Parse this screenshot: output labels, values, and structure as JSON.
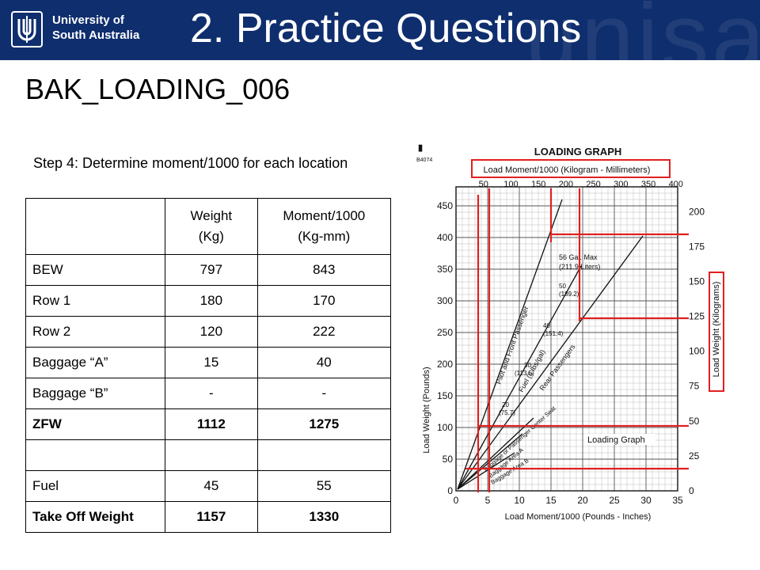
{
  "header": {
    "university_line1": "University of",
    "university_line2": "South Australia",
    "title": "2. Practice Questions",
    "watermark": "unisa"
  },
  "subtitle": "BAK_LOADING_006",
  "step_text": "Step 4: Determine moment/1000 for each location",
  "table": {
    "col_weight": [
      "Weight",
      "(Kg)"
    ],
    "col_moment": [
      "Moment/1000",
      "(Kg-mm)"
    ],
    "rows": [
      {
        "label": "BEW",
        "weight": "797",
        "moment": "843",
        "bold": false
      },
      {
        "label": "Row 1",
        "weight": "180",
        "moment": "170",
        "bold": false
      },
      {
        "label": "Row 2",
        "weight": "120",
        "moment": "222",
        "bold": false
      },
      {
        "label": "Baggage “A”",
        "weight": "15",
        "moment": "40",
        "bold": false
      },
      {
        "label": "Baggage “B”",
        "weight": "-",
        "moment": "-",
        "bold": false
      },
      {
        "label": "ZFW",
        "weight": "1112",
        "moment": "1275",
        "bold": true
      },
      {
        "label": "",
        "weight": "",
        "moment": "",
        "bold": false
      },
      {
        "label": "Fuel",
        "weight": "45",
        "moment": "55",
        "bold": false
      },
      {
        "label": "Take Off Weight",
        "weight": "1157",
        "moment": "1330",
        "bold": true
      }
    ]
  },
  "graph": {
    "corner_code": "B4074",
    "title": "LOADING GRAPH",
    "top_axis_label": "Load Moment/1000 (Kilogram - Millimeters)",
    "top_ticks": [
      "50",
      "100",
      "150",
      "200",
      "250",
      "300",
      "350",
      "400"
    ],
    "bottom_axis_label": "Load Moment/1000 (Pounds - Inches)",
    "bottom_ticks": [
      "0",
      "5",
      "10",
      "15",
      "20",
      "25",
      "30",
      "35"
    ],
    "left_axis_label": "Load Weight (Pounds)",
    "left_ticks": [
      "0",
      "50",
      "100",
      "150",
      "200",
      "250",
      "300",
      "350",
      "400",
      "450"
    ],
    "right_axis_label": "Load Weight (Kilograms)",
    "right_ticks": [
      "0",
      "25",
      "50",
      "75",
      "100",
      "125",
      "150",
      "175",
      "200"
    ],
    "line_labels": [
      "Pilot and Front Passenger",
      "Fuel (6 lbs/gal)",
      "Rear Passengers",
      "Baggage or Passenger Center Seat",
      "Baggage Area A",
      "Baggage Area B"
    ],
    "fuel_max": [
      "56 Gal. Max",
      "(211.9 Liters)"
    ],
    "fuel_marks": [
      "50",
      "(189.2)",
      "40",
      "(151.4)",
      "30",
      "(113.5)",
      "20",
      "(75.7)"
    ],
    "inner_label": "Loading Graph",
    "highlight_color": "#e02020"
  }
}
